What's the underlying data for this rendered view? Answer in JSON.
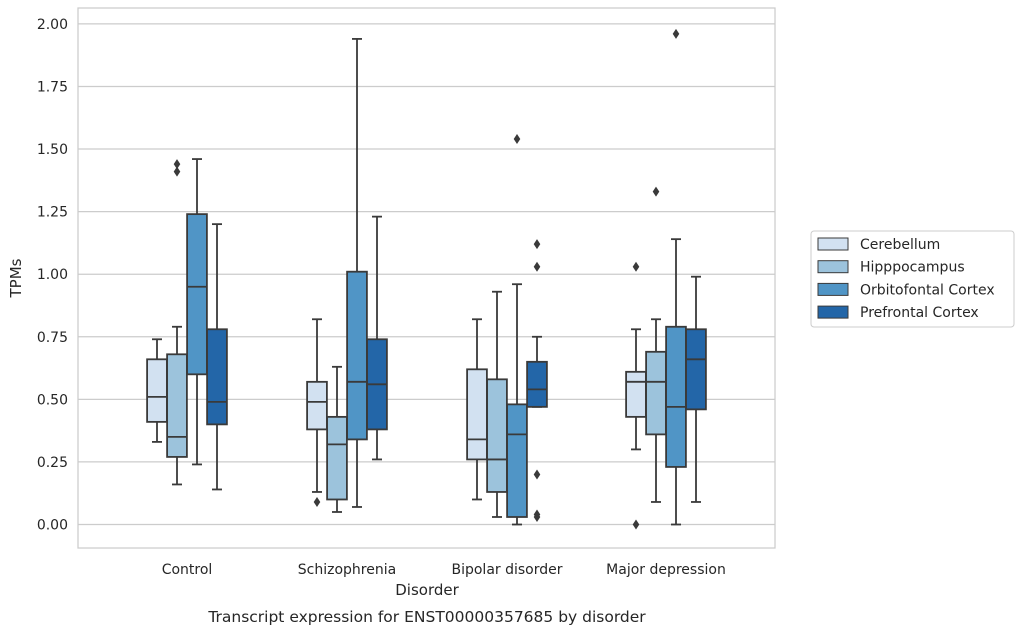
{
  "chart_data": {
    "type": "box",
    "ylabel": "TPMs",
    "xlabel": "Disorder",
    "caption": "Transcript expression for ENST00000357685 by disorder",
    "ylim": [
      -0.1,
      2.06
    ],
    "yticks": [
      "0.00",
      "0.25",
      "0.50",
      "0.75",
      "1.00",
      "1.25",
      "1.50",
      "1.75",
      "2.00"
    ],
    "grid": "horizontal",
    "legend_position": "right",
    "categories": [
      "Control",
      "Schizophrenia",
      "Bipolar disorder",
      "Major depression"
    ],
    "series": [
      {
        "name": "Cerebellum",
        "color": "#d2e1f1",
        "boxes": [
          {
            "whislo": 0.33,
            "q1": 0.41,
            "med": 0.51,
            "q3": 0.66,
            "whishi": 0.74,
            "fliers": []
          },
          {
            "whislo": 0.13,
            "q1": 0.38,
            "med": 0.49,
            "q3": 0.57,
            "whishi": 0.82,
            "fliers": [
              0.09
            ]
          },
          {
            "whislo": 0.1,
            "q1": 0.26,
            "med": 0.34,
            "q3": 0.62,
            "whishi": 0.82,
            "fliers": []
          },
          {
            "whislo": 0.3,
            "q1": 0.43,
            "med": 0.57,
            "q3": 0.61,
            "whishi": 0.78,
            "fliers": [
              1.03,
              0.0
            ]
          }
        ]
      },
      {
        "name": "Hipppocampus",
        "color": "#9cc3dc",
        "boxes": [
          {
            "whislo": 0.16,
            "q1": 0.27,
            "med": 0.35,
            "q3": 0.68,
            "whishi": 0.79,
            "fliers": [
              1.44,
              1.41
            ]
          },
          {
            "whislo": 0.05,
            "q1": 0.1,
            "med": 0.32,
            "q3": 0.43,
            "whishi": 0.63,
            "fliers": []
          },
          {
            "whislo": 0.03,
            "q1": 0.13,
            "med": 0.26,
            "q3": 0.58,
            "whishi": 0.93,
            "fliers": []
          },
          {
            "whislo": 0.09,
            "q1": 0.36,
            "med": 0.57,
            "q3": 0.69,
            "whishi": 0.82,
            "fliers": [
              1.33
            ]
          }
        ]
      },
      {
        "name": "Orbitofontal Cortex",
        "color": "#5095c6",
        "boxes": [
          {
            "whislo": 0.24,
            "q1": 0.6,
            "med": 0.95,
            "q3": 1.24,
            "whishi": 1.46,
            "fliers": []
          },
          {
            "whislo": 0.07,
            "q1": 0.34,
            "med": 0.57,
            "q3": 1.01,
            "whishi": 1.94,
            "fliers": []
          },
          {
            "whislo": 0.0,
            "q1": 0.03,
            "med": 0.36,
            "q3": 0.48,
            "whishi": 0.96,
            "fliers": [
              1.54
            ]
          },
          {
            "whislo": 0.0,
            "q1": 0.23,
            "med": 0.47,
            "q3": 0.79,
            "whishi": 1.14,
            "fliers": [
              1.96
            ]
          }
        ]
      },
      {
        "name": "Prefrontal Cortex",
        "color": "#2366a8",
        "boxes": [
          {
            "whislo": 0.14,
            "q1": 0.4,
            "med": 0.49,
            "q3": 0.78,
            "whishi": 1.2,
            "fliers": []
          },
          {
            "whislo": 0.26,
            "q1": 0.38,
            "med": 0.56,
            "q3": 0.74,
            "whishi": 1.23,
            "fliers": []
          },
          {
            "whislo": 0.47,
            "q1": 0.47,
            "med": 0.54,
            "q3": 0.65,
            "whishi": 0.75,
            "fliers": [
              1.12,
              1.03,
              0.2,
              0.04,
              0.03
            ]
          },
          {
            "whislo": 0.09,
            "q1": 0.46,
            "med": 0.66,
            "q3": 0.78,
            "whishi": 0.99,
            "fliers": []
          }
        ]
      }
    ]
  }
}
